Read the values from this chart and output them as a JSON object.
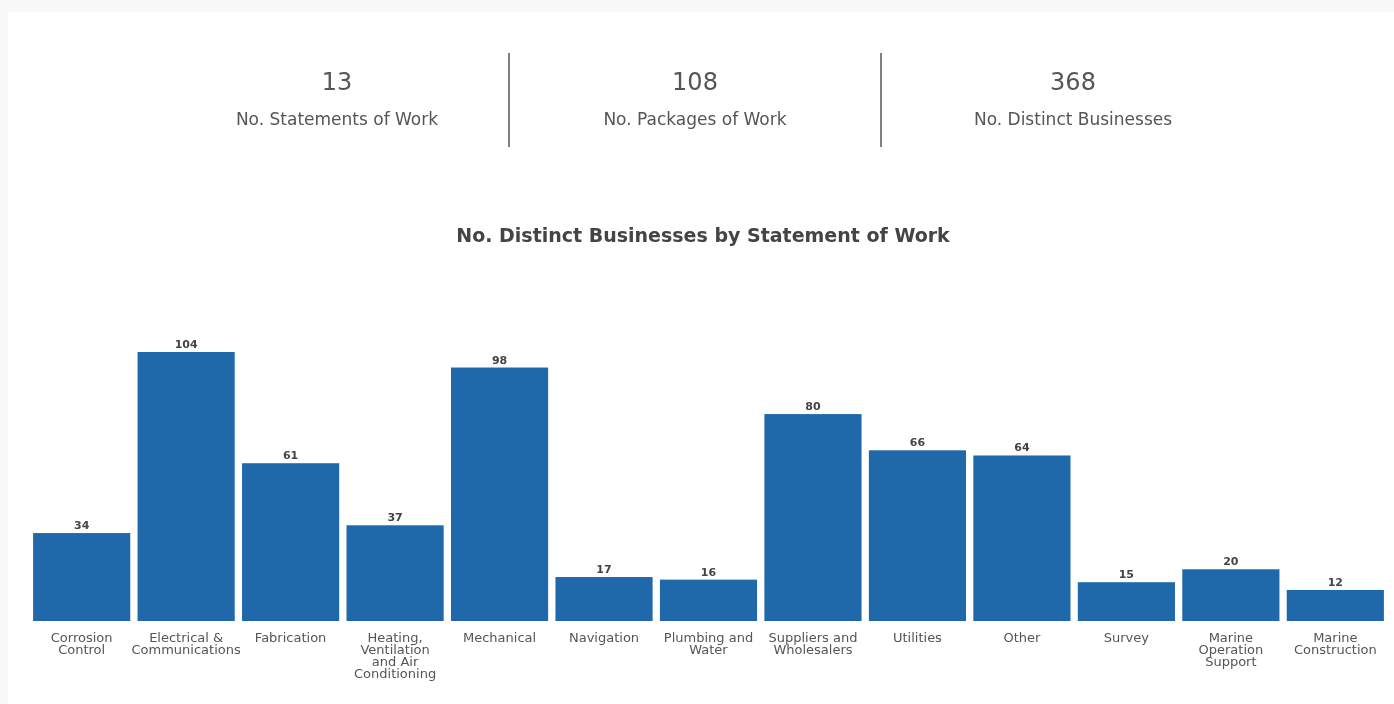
{
  "chart_data": [
    {
      "type": "other",
      "categories": [
        "No. Statements of Work",
        "No. Packages of Work",
        "No. Distinct Businesses"
      ],
      "values": [
        13,
        108,
        368
      ],
      "data_labels": true
    },
    {
      "type": "bar",
      "title": "No. Distinct Businesses by Statement of Work",
      "categories": [
        "Corrosion Control",
        "Electrical & Communications",
        "Fabrication",
        "Heating, Ventilation and Air Conditioning",
        "Mechanical",
        "Navigation",
        "Plumbing and Water",
        "Suppliers and Wholesalers",
        "Utilities",
        "Other",
        "Survey",
        "Marine Operation Support",
        "Marine Construction"
      ],
      "values": [
        34,
        104,
        61,
        37,
        98,
        17,
        16,
        80,
        66,
        64,
        15,
        20,
        12
      ],
      "color": "#1f69aa",
      "data_labels": true
    }
  ]
}
